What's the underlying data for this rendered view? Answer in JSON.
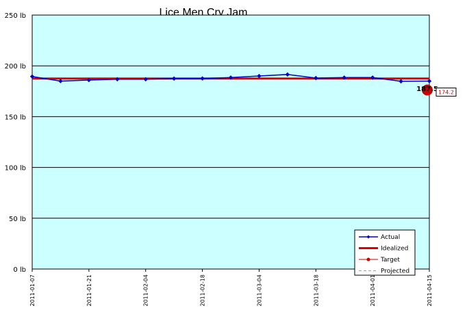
{
  "chart_data": {
    "type": "line",
    "title": "Lice Men Cry Jam",
    "xlabel": "",
    "ylabel": "",
    "ylim": [
      0,
      250
    ],
    "yticks": [
      "0 lb",
      "50 lb",
      "100 lb",
      "150 lb",
      "200 lb",
      "250 lb"
    ],
    "xticks": [
      "2011-01-07",
      "2011-01-21",
      "2011-02-04",
      "2011-02-18",
      "2011-03-04",
      "2011-03-18",
      "2011-04-01",
      "2011-04-15"
    ],
    "grid": true,
    "legend_position": "bottom-right",
    "colors": {
      "plot_background": "#ccffff",
      "actual": "#0000cc",
      "idealized": "#dd0000",
      "target": "#cc0000",
      "projected": "#ff66cc",
      "title": "#0000cc"
    },
    "series": [
      {
        "name": "Actual",
        "x": [
          "2011-01-07",
          "2011-01-14",
          "2011-01-21",
          "2011-01-28",
          "2011-02-04",
          "2011-02-11",
          "2011-02-18",
          "2011-02-25",
          "2011-03-04",
          "2011-03-11",
          "2011-03-18",
          "2011-03-25",
          "2011-04-01",
          "2011-04-08",
          "2011-04-15"
        ],
        "values": [
          189.5,
          185.0,
          186.0,
          186.8,
          186.8,
          187.5,
          187.6,
          188.5,
          190.0,
          191.5,
          188.0,
          188.5,
          188.5,
          184.8,
          185.0
        ]
      },
      {
        "name": "Idealized",
        "x": [
          "2011-01-07",
          "2011-04-15"
        ],
        "values": [
          187.5,
          187.5
        ]
      },
      {
        "name": "Target",
        "x": [
          "2011-04-15"
        ],
        "values": [
          174.2
        ]
      },
      {
        "name": "Projected",
        "x": [],
        "values": []
      }
    ],
    "annotations": [
      {
        "text": "187.5",
        "x": "2011-04-15",
        "y": 187.5
      },
      {
        "text": "174.2",
        "x": "2011-04-15",
        "y": 174.2
      }
    ]
  }
}
